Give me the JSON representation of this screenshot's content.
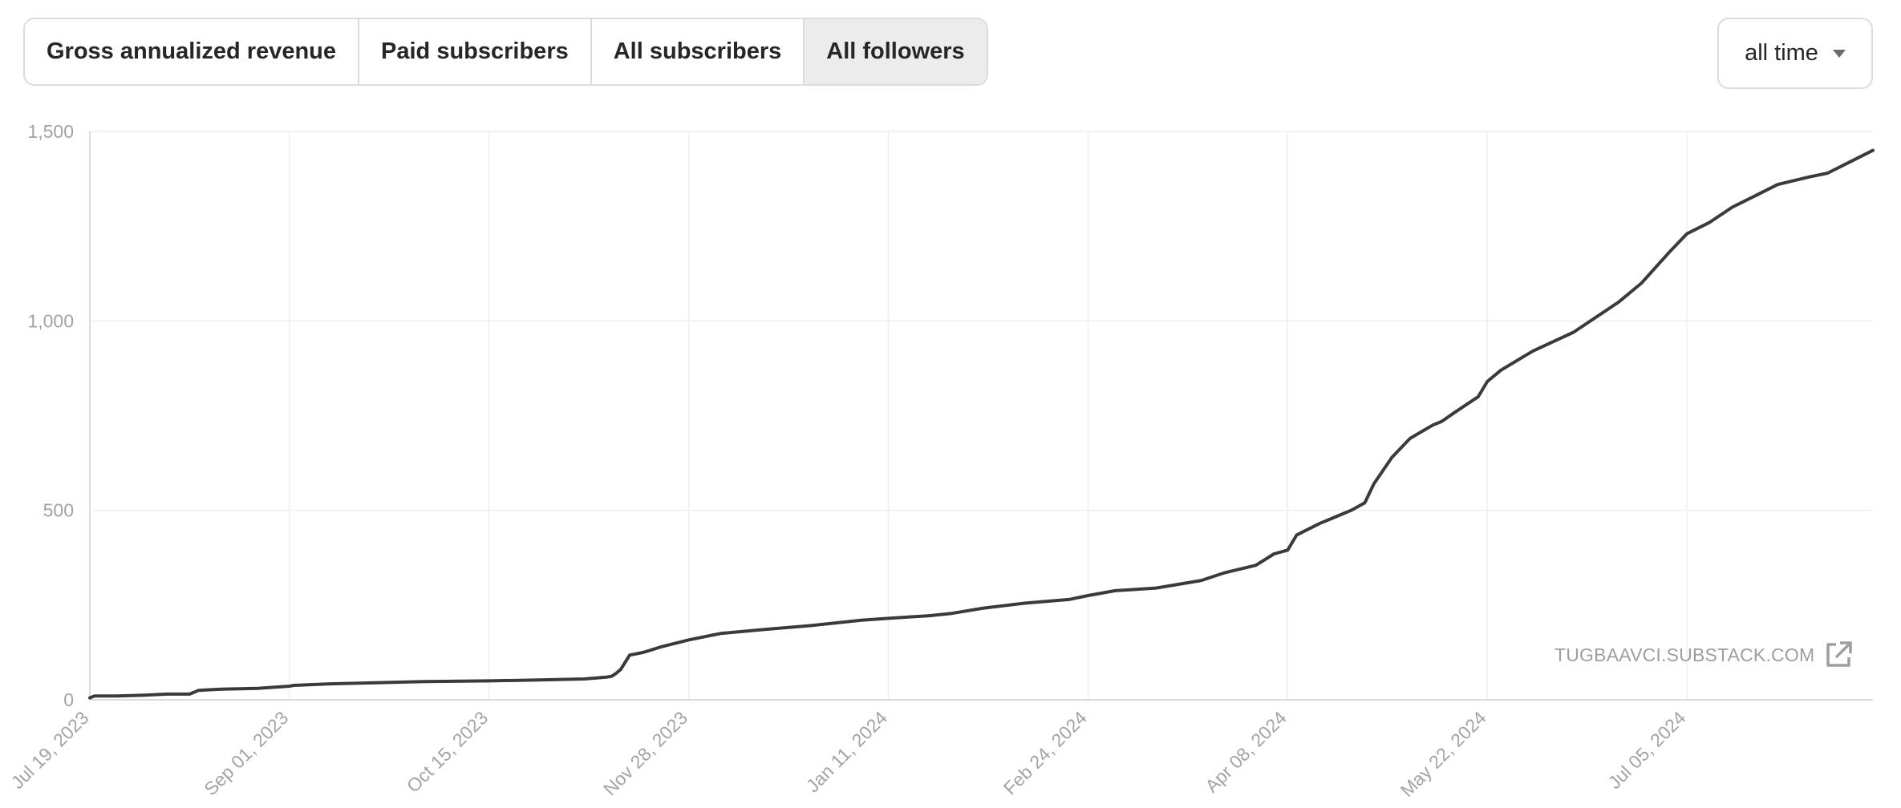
{
  "tabs": [
    {
      "label": "Gross annualized revenue",
      "active": false
    },
    {
      "label": "Paid subscribers",
      "active": false
    },
    {
      "label": "All subscribers",
      "active": false
    },
    {
      "label": "All followers",
      "active": true
    }
  ],
  "range": {
    "label": "all time",
    "icon": "caret-down-icon"
  },
  "watermark": {
    "text": "TUGBAAVCI.SUBSTACK.COM",
    "icon": "external-link-icon"
  },
  "colors": {
    "line": "#3a3a3a",
    "grid": "#efefef",
    "axis": "#cfcfcf",
    "tick_text": "#a3a3a3"
  },
  "chart_data": {
    "type": "line",
    "title": "",
    "xlabel": "",
    "ylabel": "",
    "x_start": "2023-07-19",
    "x_end": "2024-08-15",
    "ylim": [
      0,
      1500
    ],
    "yticks": [
      0,
      500,
      1000,
      1500
    ],
    "ytick_labels": [
      "0",
      "500",
      "1,000",
      "1,500"
    ],
    "xticks": [
      "2023-07-19",
      "2023-09-01",
      "2023-10-15",
      "2023-11-28",
      "2024-01-11",
      "2024-02-24",
      "2024-04-08",
      "2024-05-22",
      "2024-07-05"
    ],
    "xtick_labels": [
      "Jul 19, 2023",
      "Sep 01, 2023",
      "Oct 15, 2023",
      "Nov 28, 2023",
      "Jan 11, 2024",
      "Feb 24, 2024",
      "Apr 08, 2024",
      "May 22, 2024",
      "Jul 05, 2024"
    ],
    "grid": true,
    "legend": "none",
    "series": [
      {
        "x": [
          "2023-07-19",
          "2023-07-20",
          "2023-07-25",
          "2023-07-31",
          "2023-08-05",
          "2023-08-10",
          "2023-08-12",
          "2023-08-17",
          "2023-08-25",
          "2023-09-01",
          "2023-09-02",
          "2023-09-10",
          "2023-09-20",
          "2023-10-01",
          "2023-10-15",
          "2023-10-25",
          "2023-11-05",
          "2023-11-08",
          "2023-11-10",
          "2023-11-11",
          "2023-11-12",
          "2023-11-13",
          "2023-11-15",
          "2023-11-18",
          "2023-11-22",
          "2023-11-28",
          "2023-12-05",
          "2023-12-15",
          "2023-12-25",
          "2024-01-05",
          "2024-01-11",
          "2024-01-20",
          "2024-01-25",
          "2024-02-01",
          "2024-02-10",
          "2024-02-20",
          "2024-02-24",
          "2024-03-01",
          "2024-03-10",
          "2024-03-20",
          "2024-03-25",
          "2024-04-01",
          "2024-04-05",
          "2024-04-08",
          "2024-04-10",
          "2024-04-15",
          "2024-04-20",
          "2024-04-22",
          "2024-04-25",
          "2024-04-27",
          "2024-05-01",
          "2024-05-05",
          "2024-05-10",
          "2024-05-12",
          "2024-05-15",
          "2024-05-20",
          "2024-05-22",
          "2024-05-25",
          "2024-06-01",
          "2024-06-10",
          "2024-06-20",
          "2024-06-25",
          "2024-07-01",
          "2024-07-05",
          "2024-07-10",
          "2024-07-15",
          "2024-07-20",
          "2024-07-25",
          "2024-08-01",
          "2024-08-05",
          "2024-08-10",
          "2024-08-15"
        ],
        "y": [
          5,
          10,
          10,
          12,
          15,
          15,
          25,
          28,
          30,
          36,
          38,
          42,
          45,
          48,
          50,
          52,
          55,
          58,
          60,
          62,
          70,
          80,
          118,
          125,
          140,
          158,
          175,
          186,
          196,
          210,
          215,
          222,
          228,
          242,
          255,
          265,
          275,
          288,
          295,
          315,
          335,
          355,
          385,
          395,
          435,
          465,
          490,
          500,
          520,
          570,
          640,
          690,
          725,
          735,
          760,
          800,
          840,
          870,
          920,
          970,
          1050,
          1100,
          1180,
          1230,
          1260,
          1300,
          1330,
          1360,
          1380,
          1390,
          1420,
          1450
        ]
      }
    ]
  }
}
